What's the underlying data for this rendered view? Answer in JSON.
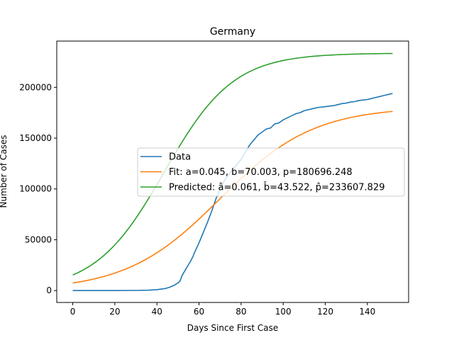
{
  "chart_data": {
    "type": "line",
    "title": "Germany",
    "xlabel": "Days Since First Case",
    "ylabel": "Number of Cases",
    "xlim": [
      -7.6,
      159.6
    ],
    "ylim": [
      -11700,
      245500
    ],
    "xticks": [
      0,
      20,
      40,
      60,
      80,
      100,
      120,
      140
    ],
    "yticks": [
      0,
      50000,
      100000,
      150000,
      200000
    ],
    "xtick_labels": [
      "0",
      "20",
      "40",
      "60",
      "80",
      "100",
      "120",
      "140"
    ],
    "ytick_labels": [
      "0",
      "50000",
      "100000",
      "150000",
      "200000"
    ],
    "grid": false,
    "legend_position": "center-right",
    "series": [
      {
        "name": "Data",
        "color": "#1f77b4",
        "kind": "points",
        "x": [
          0,
          10,
          20,
          30,
          36,
          40,
          44,
          46,
          48,
          50,
          51,
          52,
          54,
          56,
          57,
          58,
          60,
          62,
          64,
          66,
          68,
          70,
          72,
          74,
          76,
          78,
          80,
          82,
          84,
          86,
          88,
          90,
          92,
          94,
          95,
          96,
          98,
          100,
          102,
          104,
          106,
          108,
          110,
          112,
          114,
          116,
          118,
          120,
          122,
          124,
          126,
          128,
          130,
          132,
          134,
          136,
          138,
          140,
          142,
          144,
          146,
          148,
          150,
          152
        ],
        "y": [
          0,
          0,
          50,
          150,
          400,
          900,
          2000,
          3300,
          5000,
          7500,
          9500,
          15000,
          22000,
          29000,
          33000,
          38000,
          47000,
          57000,
          67000,
          78000,
          90000,
          100000,
          108000,
          114000,
          119000,
          124000,
          129000,
          136000,
          143000,
          148000,
          153000,
          156000,
          159000,
          160000,
          162000,
          164000,
          165000,
          168000,
          170000,
          172000,
          174000,
          175000,
          177000,
          178000,
          179000,
          180000,
          180500,
          181000,
          181500,
          182000,
          183000,
          184000,
          184500,
          185500,
          186000,
          187000,
          187500,
          188000,
          189000,
          190000,
          191000,
          192000,
          193000,
          194000
        ]
      },
      {
        "name": "Fit: a=0.045, b=70.003, p=180696.248",
        "color": "#ff7f0e",
        "kind": "logistic",
        "params": {
          "a": 0.045,
          "b": 70.003,
          "p": 180696.248
        },
        "x_range": [
          0,
          152
        ]
      },
      {
        "name": "Predicted: â=0.061, b̂=43.522, p̂=233607.829",
        "color": "#2ca02c",
        "kind": "logistic",
        "params": {
          "a": 0.061,
          "b": 43.522,
          "p": 233607.829
        },
        "x_range": [
          0,
          152
        ]
      }
    ]
  }
}
